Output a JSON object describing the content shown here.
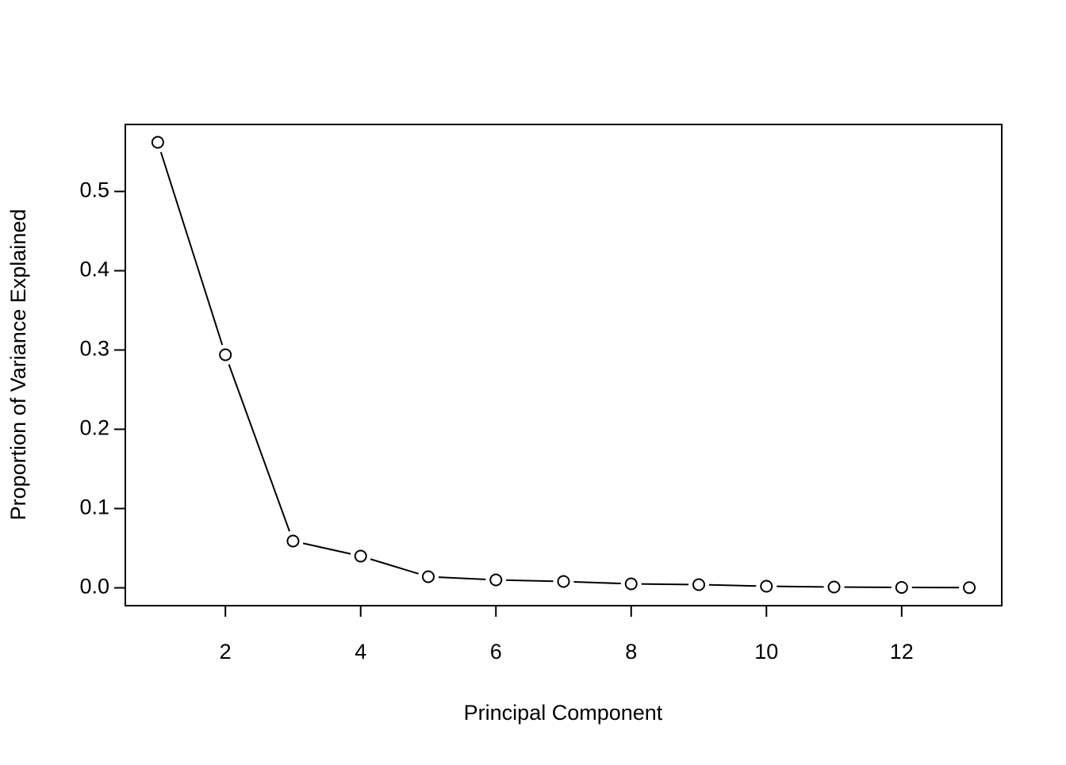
{
  "chart_data": {
    "type": "line",
    "xlabel": "Principal Component",
    "ylabel": "Proportion of Variance Explained",
    "x": [
      1,
      2,
      3,
      4,
      5,
      6,
      7,
      8,
      9,
      10,
      11,
      12,
      13
    ],
    "values": [
      0.562,
      0.294,
      0.059,
      0.04,
      0.014,
      0.01,
      0.008,
      0.005,
      0.004,
      0.002,
      0.001,
      0.0005,
      0.0002
    ],
    "color": "#000000",
    "xlim": [
      0.52,
      13.48
    ],
    "xticks": [
      2,
      4,
      6,
      8,
      10,
      12
    ],
    "ylim": [
      -0.0225,
      0.5845
    ],
    "yticks": [
      {
        "value": 0,
        "label": "0.0"
      },
      0.1,
      0.2,
      0.3,
      0.4,
      0.5
    ],
    "grid": false
  }
}
